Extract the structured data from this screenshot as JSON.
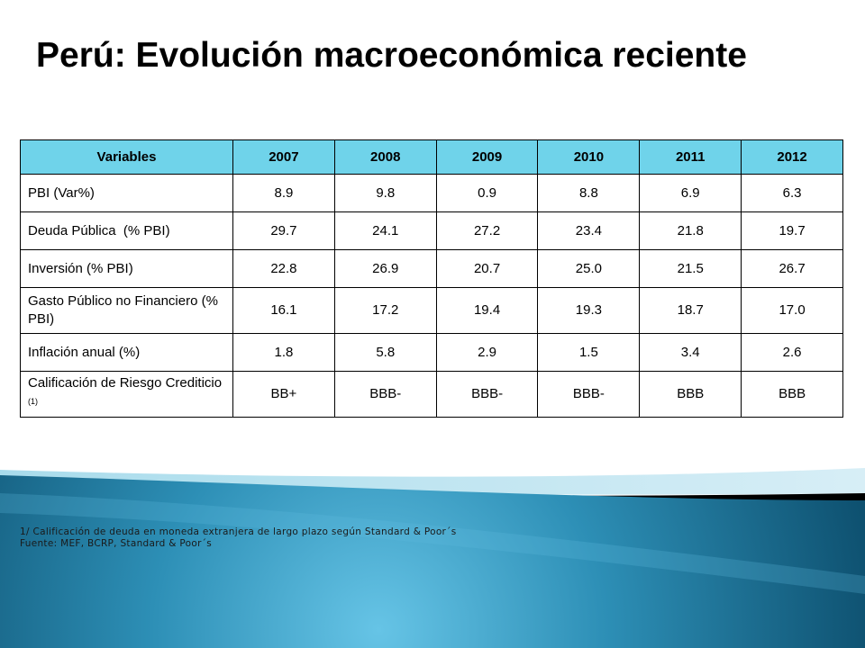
{
  "slide": {
    "title": "Perú: Evolución macroeconómica reciente",
    "colors": {
      "header_fill": "#6fd3ea",
      "wave_dark": "#0e5a78",
      "wave_light": "#4fb3d8"
    }
  },
  "table": {
    "headers": [
      "Variables",
      "2007",
      "2008",
      "2009",
      "2010",
      "2011",
      "2012"
    ],
    "rows": [
      {
        "label": "PBI (Var%)",
        "values": [
          "8.9",
          "9.8",
          "0.9",
          "8.8",
          "6.9",
          "6.3"
        ]
      },
      {
        "label": "Deuda Pública  (% PBI)",
        "values": [
          "29.7",
          "24.1",
          "27.2",
          "23.4",
          "21.8",
          "19.7"
        ]
      },
      {
        "label": "Inversión (% PBI)",
        "values": [
          "22.8",
          "26.9",
          "20.7",
          "25.0",
          "21.5",
          "26.7"
        ]
      },
      {
        "label": "Gasto Público no Financiero (% PBI)",
        "values": [
          "16.1",
          "17.2",
          "19.4",
          "19.3",
          "18.7",
          "17.0"
        ]
      },
      {
        "label": "Inflación anual (%)",
        "values": [
          "1.8",
          "5.8",
          "2.9",
          "1.5",
          "3.4",
          "2.6"
        ]
      },
      {
        "label": "Calificación de Riesgo Crediticio",
        "superscript": "(1)",
        "values": [
          "BB+",
          "BBB-",
          "BBB-",
          "BBB-",
          "BBB",
          "BBB"
        ]
      }
    ]
  },
  "footnotes": {
    "note1": "1/ Calificación de deuda en moneda extranjera de largo plazo según Standard & Poor´s",
    "source": "Fuente: MEF, BCRP, Standard & Poor´s"
  }
}
